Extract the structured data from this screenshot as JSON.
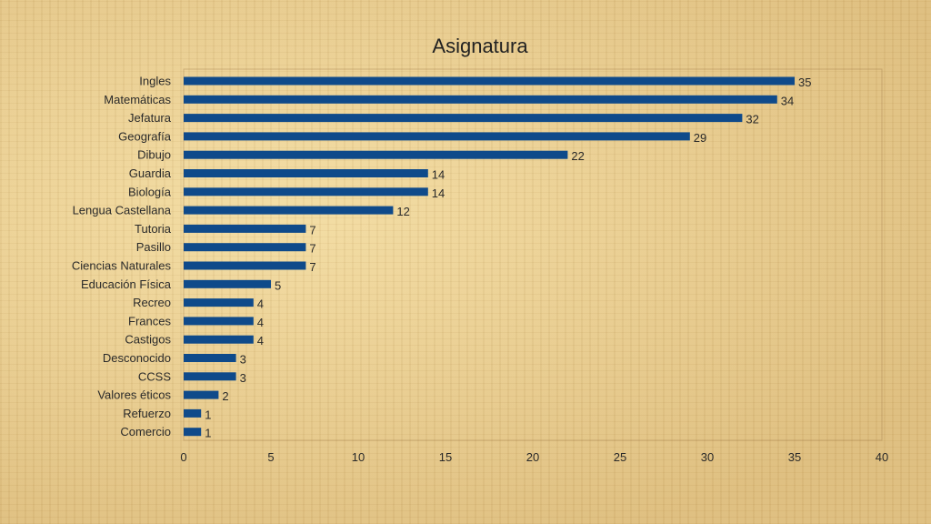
{
  "chart_data": {
    "type": "bar",
    "orientation": "horizontal",
    "title": "Asignatura",
    "xlabel": "",
    "ylabel": "",
    "categories": [
      "Ingles",
      "Matemáticas",
      "Jefatura",
      "Geografía",
      "Dibujo",
      "Guardia",
      "Biología",
      "Lengua Castellana",
      "Tutoria",
      "Pasillo",
      "Ciencias Naturales",
      "Educación Física",
      "Recreo",
      "Frances",
      "Castigos",
      "Desconocido",
      "CCSS",
      "Valores éticos",
      "Refuerzo",
      "Comercio"
    ],
    "values": [
      35,
      34,
      32,
      29,
      22,
      14,
      14,
      12,
      7,
      7,
      7,
      5,
      4,
      4,
      4,
      3,
      3,
      2,
      1,
      1
    ],
    "xlim": [
      0,
      40
    ],
    "xticks": [
      0,
      5,
      10,
      15,
      20,
      25,
      30,
      35,
      40
    ],
    "data_labels": true,
    "grid": false,
    "legend": "none",
    "bar_color": "#0f4a8a"
  }
}
